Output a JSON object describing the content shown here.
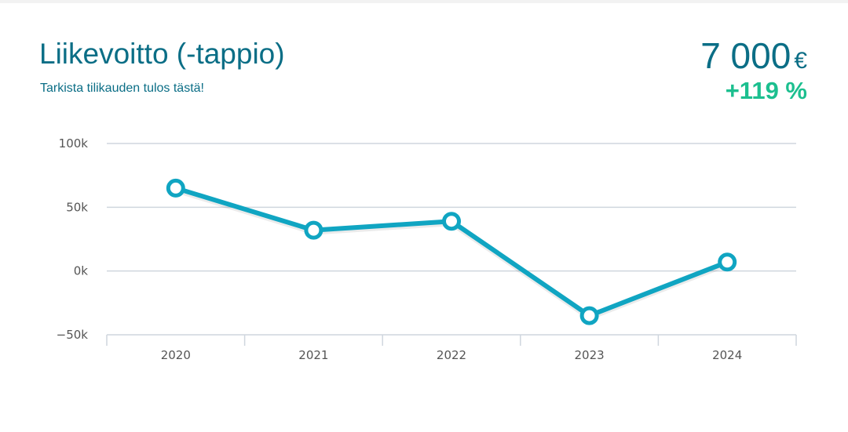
{
  "header": {
    "title": "Liikevoitto (-tappio)",
    "subtitle": "Tarkista tilikauden tulos tästä!",
    "value": "7 000",
    "currency": "€",
    "change": "+119 %"
  },
  "colors": {
    "accent": "#0b6e86",
    "line": "#10a5c2",
    "positive": "#1cbf8f",
    "grid": "#cfd6de"
  },
  "chart_data": {
    "type": "line",
    "categories": [
      "2020",
      "2021",
      "2022",
      "2023",
      "2024"
    ],
    "series": [
      {
        "values": [
          65000,
          32000,
          39000,
          -35000,
          7000
        ]
      }
    ],
    "ylim": [
      -50000,
      100000
    ],
    "yticks": [
      100000,
      50000,
      0,
      -50000
    ],
    "ytick_labels": [
      "100k",
      "50k",
      "0k",
      "−50k"
    ],
    "grid": true
  }
}
